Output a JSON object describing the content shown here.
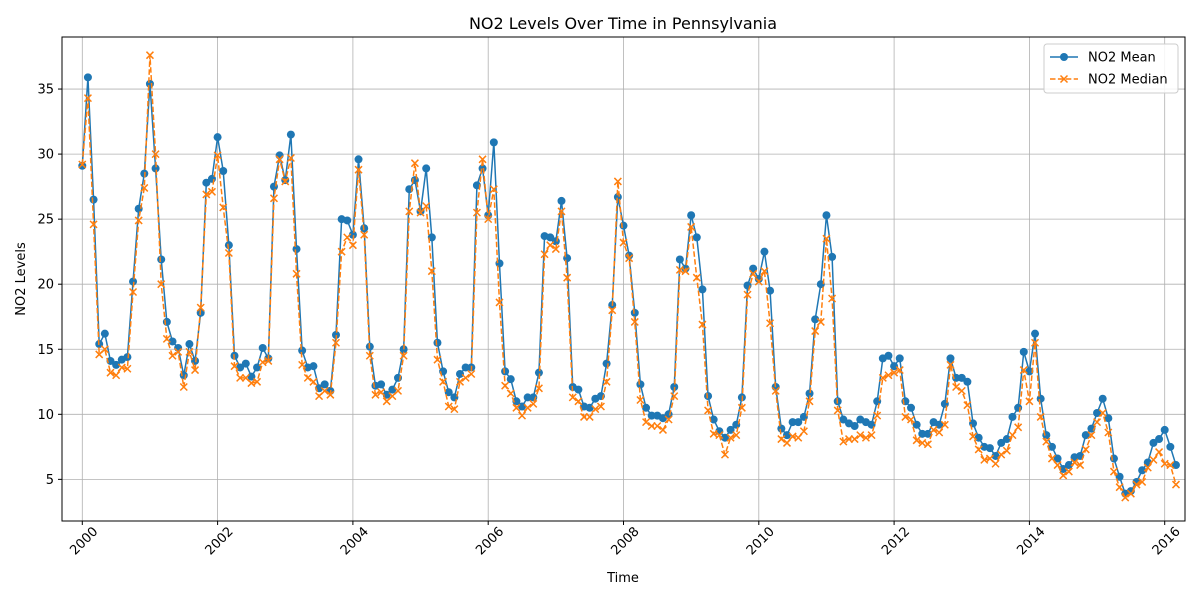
{
  "chart_data": {
    "type": "line",
    "title": "NO2 Levels Over Time in Pennsylvania",
    "xlabel": "Time",
    "ylabel": "NO2 Levels",
    "x_start": "2000-01",
    "x_step": "month",
    "xlim": [
      1999.7,
      2016.3
    ],
    "ylim": [
      1.8,
      39.0
    ],
    "xticks": [
      "2000",
      "2002",
      "2004",
      "2006",
      "2008",
      "2010",
      "2012",
      "2014",
      "2016"
    ],
    "yticks": [
      "5",
      "10",
      "15",
      "20",
      "25",
      "30",
      "35"
    ],
    "grid": true,
    "legend_position": "top-right",
    "colors": {
      "mean": "#1f77b4",
      "median": "#ff7f0e",
      "grid": "#b0b0b0"
    },
    "series": [
      {
        "name": "NO2 Mean",
        "marker": "circle",
        "line": "solid",
        "values": [
          29.1,
          35.9,
          26.5,
          15.4,
          16.2,
          14.1,
          13.8,
          14.2,
          14.4,
          20.2,
          25.8,
          28.5,
          35.4,
          28.9,
          21.9,
          17.1,
          15.6,
          15.1,
          13.0,
          15.4,
          14.1,
          17.8,
          27.8,
          28.1,
          31.3,
          28.7,
          23.0,
          14.5,
          13.6,
          13.9,
          12.9,
          13.6,
          15.1,
          14.3,
          27.5,
          29.9,
          28.0,
          31.5,
          22.7,
          14.9,
          13.6,
          13.7,
          12.0,
          12.3,
          11.8,
          16.1,
          25.0,
          24.9,
          23.8,
          29.6,
          24.3,
          15.2,
          12.2,
          12.3,
          11.5,
          11.9,
          12.8,
          15.0,
          27.3,
          28.0,
          25.6,
          28.9,
          23.6,
          15.5,
          13.3,
          11.7,
          11.3,
          13.1,
          13.6,
          13.6,
          27.6,
          28.9,
          25.3,
          30.9,
          21.6,
          13.3,
          12.7,
          11.0,
          10.6,
          11.3,
          11.3,
          13.2,
          23.7,
          23.6,
          23.3,
          26.4,
          22.0,
          12.1,
          11.9,
          10.6,
          10.5,
          11.2,
          11.4,
          13.9,
          18.4,
          26.7,
          24.5,
          22.2,
          17.8,
          12.3,
          10.5,
          9.9,
          9.9,
          9.7,
          10.0,
          12.1,
          21.9,
          21.2,
          25.3,
          23.6,
          19.6,
          11.4,
          9.6,
          8.7,
          8.2,
          8.8,
          9.2,
          11.3,
          19.9,
          21.2,
          20.4,
          22.5,
          19.5,
          12.1,
          8.9,
          8.4,
          9.4,
          9.4,
          9.8,
          11.6,
          17.3,
          20.0,
          25.3,
          22.1,
          11.0,
          9.6,
          9.3,
          9.1,
          9.6,
          9.4,
          9.2,
          11.0,
          14.3,
          14.5,
          13.7,
          14.3,
          11.0,
          10.5,
          9.2,
          8.5,
          8.5,
          9.4,
          9.2,
          10.8,
          14.3,
          12.8,
          12.8,
          12.5,
          9.3,
          8.2,
          7.5,
          7.4,
          6.8,
          7.8,
          8.1,
          9.8,
          10.5,
          14.8,
          13.3,
          16.2,
          11.2,
          8.4,
          7.5,
          6.6,
          5.8,
          6.1,
          6.7,
          6.8,
          8.4,
          8.9,
          10.1,
          11.2,
          9.7,
          6.6,
          5.2,
          3.9,
          4.1,
          4.8,
          5.7,
          6.3,
          7.8,
          8.1,
          8.8,
          7.5,
          6.1
        ]
      },
      {
        "name": "NO2 Median",
        "marker": "x",
        "line": "dashed",
        "values": [
          29.2,
          34.3,
          24.6,
          14.6,
          15.0,
          13.2,
          13.0,
          13.6,
          13.5,
          19.4,
          24.9,
          27.4,
          37.6,
          30.0,
          20.0,
          15.8,
          14.5,
          14.8,
          12.1,
          14.8,
          13.4,
          18.2,
          26.9,
          27.1,
          29.9,
          25.9,
          22.4,
          13.7,
          12.8,
          12.8,
          12.4,
          12.5,
          14.0,
          14.1,
          26.6,
          29.6,
          27.9,
          29.7,
          20.8,
          13.8,
          12.8,
          12.5,
          11.4,
          11.8,
          11.5,
          15.5,
          22.5,
          23.6,
          23.0,
          28.8,
          23.8,
          14.5,
          11.5,
          11.7,
          11.0,
          11.4,
          11.8,
          14.5,
          25.6,
          29.3,
          25.5,
          26.0,
          21.0,
          14.2,
          12.5,
          10.6,
          10.4,
          12.5,
          12.8,
          13.1,
          25.5,
          29.6,
          25.0,
          27.3,
          18.6,
          12.2,
          11.6,
          10.5,
          9.9,
          10.5,
          10.8,
          12.0,
          22.3,
          23.0,
          22.7,
          25.6,
          20.5,
          11.3,
          11.0,
          9.8,
          9.8,
          10.4,
          10.6,
          12.5,
          18.0,
          27.9,
          23.2,
          22.0,
          17.1,
          11.1,
          9.4,
          9.1,
          9.1,
          8.8,
          9.6,
          11.4,
          21.1,
          21.0,
          24.4,
          20.5,
          16.9,
          10.3,
          8.5,
          8.4,
          6.9,
          8.2,
          8.4,
          10.5,
          19.2,
          20.8,
          20.2,
          21.0,
          17.0,
          11.8,
          8.1,
          7.8,
          8.3,
          8.2,
          8.7,
          11.0,
          16.4,
          17.1,
          23.5,
          18.9,
          10.3,
          7.9,
          8.1,
          8.1,
          8.4,
          8.2,
          8.4,
          9.9,
          12.8,
          13.0,
          13.2,
          13.4,
          9.8,
          9.6,
          8.0,
          7.8,
          7.7,
          8.8,
          8.6,
          9.2,
          13.8,
          12.1,
          11.8,
          10.7,
          8.3,
          7.3,
          6.5,
          6.6,
          6.2,
          6.9,
          7.2,
          8.4,
          9.0,
          13.4,
          11.0,
          15.5,
          9.8,
          7.9,
          6.6,
          6.1,
          5.3,
          5.6,
          6.3,
          6.1,
          7.3,
          8.4,
          9.4,
          10.1,
          8.6,
          5.6,
          4.4,
          3.6,
          3.9,
          4.6,
          4.8,
          5.9,
          6.5,
          7.1,
          6.2,
          6.1,
          4.6
        ]
      }
    ]
  }
}
